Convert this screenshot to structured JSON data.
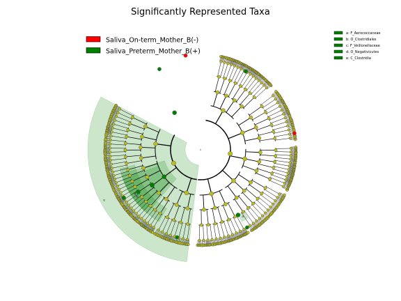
{
  "title": "Significantly Represented Taxa",
  "groups": [
    {
      "name": "Saliva_On-term_Mother_B(-)",
      "color": "#ff0000"
    },
    {
      "name": "Saliva_Preterm_Mother_B(+)",
      "color": "#008000"
    }
  ],
  "clade_legend": [
    {
      "letter": "a",
      "label": "a: F_Aerococcaceae",
      "color": "#008000"
    },
    {
      "letter": "b",
      "label": "b: O_Clostridiales",
      "color": "#008000"
    },
    {
      "letter": "c",
      "label": "c: F_Veillonellaceae",
      "color": "#008000"
    },
    {
      "letter": "d",
      "label": "d: O_Negativicutes",
      "color": "#008000"
    },
    {
      "letter": "e",
      "label": "e: C_Clostridia",
      "color": "#008000"
    }
  ],
  "sectors": [
    {
      "letter": "a",
      "start_deg": 300,
      "end_deg": 305,
      "rin": 108,
      "rout": 119
    },
    {
      "letter": "b",
      "start_deg": 193,
      "end_deg": 240,
      "rin": 97,
      "rout": 119
    },
    {
      "letter": "c",
      "start_deg": 201,
      "end_deg": 227,
      "rin": 65,
      "rout": 119
    },
    {
      "letter": "d",
      "start_deg": 197,
      "end_deg": 230,
      "rin": 54,
      "rout": 119
    },
    {
      "letter": "e",
      "start_deg": 152,
      "end_deg": 263,
      "rin": 22,
      "rout": 162
    }
  ],
  "colors": {
    "node_default": "#bcbc1e",
    "highlight_fill": "#008000",
    "enriched_on_term": "#ff0000",
    "enriched_preterm": "#008000"
  }
}
